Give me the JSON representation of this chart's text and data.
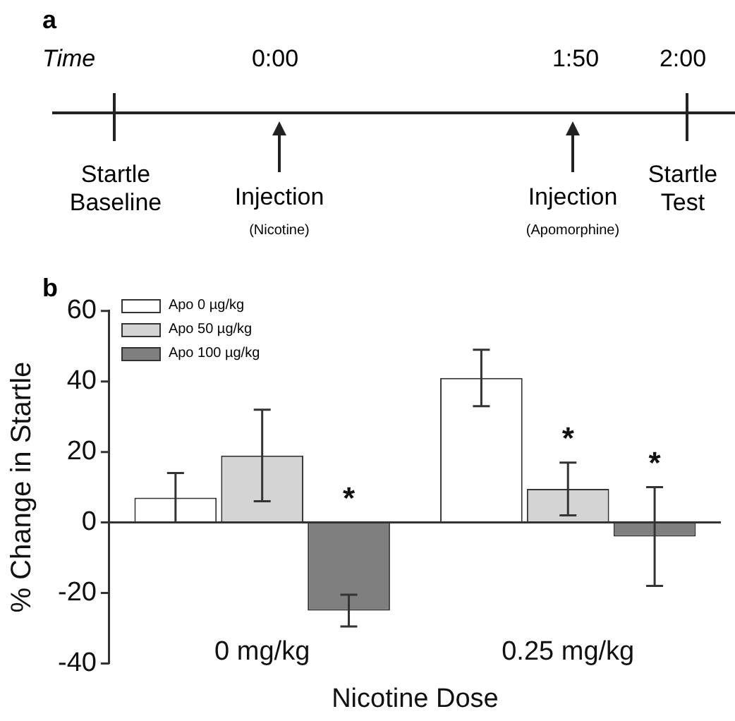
{
  "chart_data": [
    {
      "type": "other",
      "title": "a",
      "annotations": [
        "Time",
        "0:00",
        "1:50",
        "2:00",
        "Startle\nBaseline",
        "Injection",
        "(Nicotine)",
        "Injection",
        "(Apomorphine)",
        "Startle\nTest"
      ]
    },
    {
      "type": "bar",
      "title": "b",
      "xlabel": "Nicotine Dose",
      "ylabel": "% Change in Startle",
      "categories": [
        "0 mg/kg",
        "0.25 mg/kg"
      ],
      "ylim": [
        -40,
        60
      ],
      "yticks": [
        -40,
        -20,
        0,
        20,
        40,
        60
      ],
      "grid": false,
      "legend": "top left",
      "ref_lines": [
        {
          "axis": "y",
          "value": 0,
          "color": "#333333"
        }
      ],
      "series": [
        {
          "name": "Apo 0 µg/kg",
          "color": "#ffffff",
          "values": [
            7,
            41
          ],
          "errors": [
            7,
            8
          ]
        },
        {
          "name": "Apo 50 µg/kg",
          "color": "#d4d4d4",
          "values": [
            19,
            9.5
          ],
          "errors": [
            13,
            7.5
          ]
        },
        {
          "name": "Apo 100 µg/kg",
          "color": "#7f7f7f",
          "values": [
            -25,
            -4
          ],
          "errors": [
            4.5,
            14
          ]
        }
      ],
      "annotations": [
        "*",
        "*",
        "*"
      ]
    }
  ]
}
